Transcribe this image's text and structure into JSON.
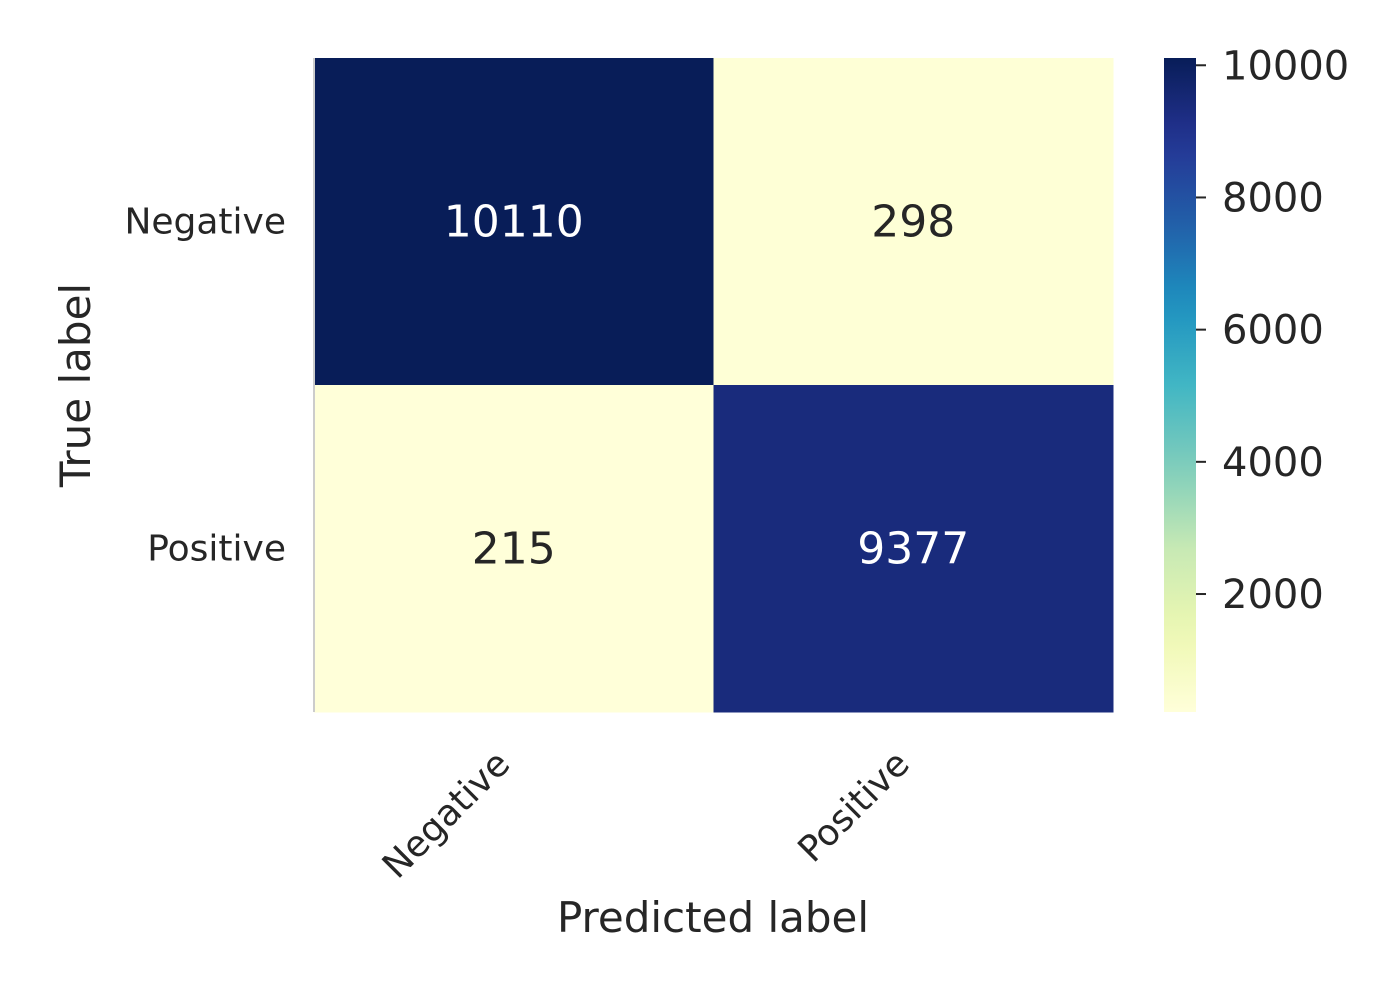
{
  "chart_data": {
    "type": "heatmap",
    "title": "",
    "xlabel": "Predicted label",
    "ylabel": "True label",
    "x_categories": [
      "Negative",
      "Positive"
    ],
    "y_categories": [
      "Negative",
      "Positive"
    ],
    "values": [
      [
        10110,
        298
      ],
      [
        215,
        9377
      ]
    ],
    "colormap": "YlGnBu",
    "colorbar": {
      "min": 215,
      "max": 10110,
      "ticks": [
        2000,
        4000,
        6000,
        8000,
        10000
      ]
    },
    "colors": {
      "dark_text": "#262626",
      "light_text": "#ffffff"
    }
  }
}
